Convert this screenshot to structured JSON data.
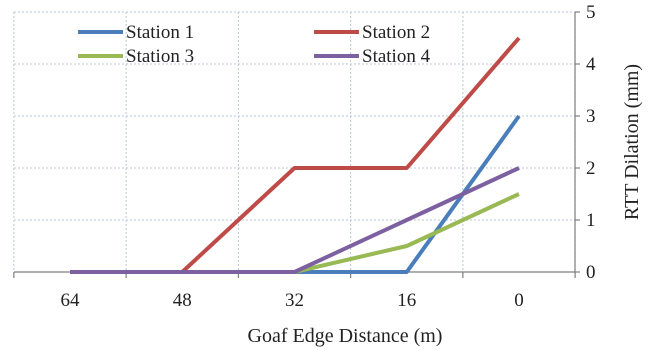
{
  "chart_data": {
    "type": "line",
    "xlabel": "Goaf  Edge Distance (m)",
    "ylabel": "RTT Dilation (mm)",
    "x": [
      64,
      48,
      32,
      16,
      0
    ],
    "x_tick_labels": [
      "64",
      "48",
      "32",
      "16",
      "0"
    ],
    "x_reversed": true,
    "ylim": [
      0,
      5
    ],
    "y_ticks": [
      0,
      1,
      2,
      3,
      4,
      5
    ],
    "y_axis_side": "right",
    "grid": {
      "vertical": true,
      "horizontal": true
    },
    "legend_position": "top",
    "series": [
      {
        "name": "Station 1",
        "color": "#4a7ebb",
        "values": [
          0,
          0,
          0,
          0,
          3
        ]
      },
      {
        "name": "Station 2",
        "color": "#be4b48",
        "values": [
          0,
          0,
          2,
          2,
          4.5
        ]
      },
      {
        "name": "Station 3",
        "color": "#98b954",
        "values": [
          0,
          0,
          0,
          0.5,
          1.5
        ]
      },
      {
        "name": "Station 4",
        "color": "#7d60a0",
        "values": [
          0,
          0,
          0,
          1,
          2
        ]
      }
    ]
  }
}
